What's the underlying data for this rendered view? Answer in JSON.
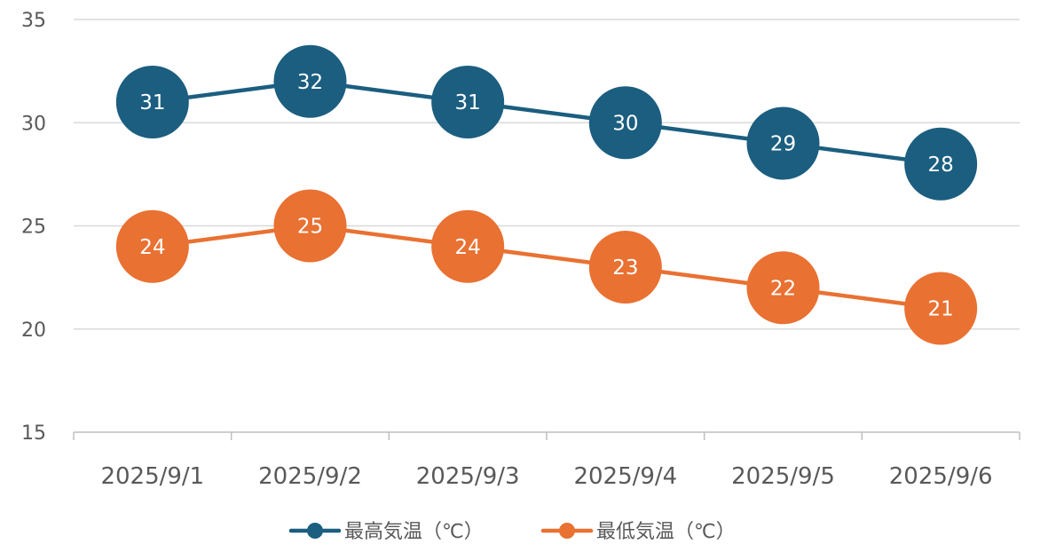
{
  "chart_data": {
    "type": "line",
    "categories": [
      "2025/9/1",
      "2025/9/2",
      "2025/9/3",
      "2025/9/4",
      "2025/9/5",
      "2025/9/6"
    ],
    "series": [
      {
        "name": "最高気温（℃）",
        "values": [
          31,
          32,
          31,
          30,
          29,
          28
        ],
        "color": "#1b5e80"
      },
      {
        "name": "最低気温（℃）",
        "values": [
          24,
          25,
          24,
          23,
          22,
          21
        ],
        "color": "#e97132"
      }
    ],
    "yticks": [
      "15",
      "20",
      "25",
      "30",
      "35"
    ],
    "ylim": [
      15,
      35
    ],
    "grid": true,
    "data_labels": true,
    "legend_position": "bottom",
    "colors": {
      "gridline": "#d9d9d9",
      "axis": "#bfbfbf",
      "text": "#595959"
    }
  }
}
